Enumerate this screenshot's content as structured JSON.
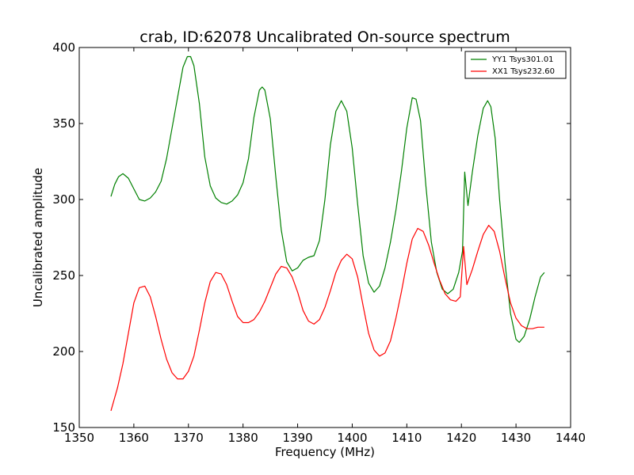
{
  "chart_data": {
    "type": "line",
    "title": "crab, ID:62078 Uncalibrated On-source spectrum",
    "xlabel": "Frequency (MHz)",
    "ylabel": "Uncalibrated amplitude",
    "xlim": [
      1350,
      1440
    ],
    "ylim": [
      150,
      400
    ],
    "xticks": [
      1350,
      1360,
      1370,
      1380,
      1390,
      1400,
      1410,
      1420,
      1430,
      1440
    ],
    "yticks": [
      150,
      200,
      250,
      300,
      350,
      400
    ],
    "grid": false,
    "legend_position": "top-right",
    "series": [
      {
        "name": "YY1 Tsys301.01",
        "color": "#008000",
        "points": [
          [
            1355.8,
            302
          ],
          [
            1356.5,
            310
          ],
          [
            1357.2,
            315
          ],
          [
            1358.0,
            317
          ],
          [
            1359.0,
            314
          ],
          [
            1360.0,
            307
          ],
          [
            1361.0,
            300
          ],
          [
            1362.0,
            299
          ],
          [
            1363.0,
            301
          ],
          [
            1364.0,
            305
          ],
          [
            1365.0,
            312
          ],
          [
            1366.0,
            327
          ],
          [
            1367.0,
            347
          ],
          [
            1368.0,
            367
          ],
          [
            1369.0,
            387
          ],
          [
            1369.8,
            394
          ],
          [
            1370.4,
            394
          ],
          [
            1371.0,
            388
          ],
          [
            1372.0,
            363
          ],
          [
            1373.0,
            328
          ],
          [
            1374.0,
            309
          ],
          [
            1375.0,
            301
          ],
          [
            1376.0,
            298
          ],
          [
            1377.0,
            297
          ],
          [
            1378.0,
            299
          ],
          [
            1379.0,
            303
          ],
          [
            1380.0,
            311
          ],
          [
            1381.0,
            327
          ],
          [
            1382.0,
            354
          ],
          [
            1383.0,
            372
          ],
          [
            1383.5,
            374
          ],
          [
            1384.0,
            372
          ],
          [
            1385.0,
            353
          ],
          [
            1386.0,
            315
          ],
          [
            1387.0,
            280
          ],
          [
            1388.0,
            259
          ],
          [
            1389.0,
            253
          ],
          [
            1390.0,
            255
          ],
          [
            1391.0,
            260
          ],
          [
            1392.0,
            262
          ],
          [
            1393.0,
            263
          ],
          [
            1394.0,
            273
          ],
          [
            1395.0,
            300
          ],
          [
            1396.0,
            336
          ],
          [
            1397.0,
            358
          ],
          [
            1398.0,
            365
          ],
          [
            1399.0,
            358
          ],
          [
            1400.0,
            334
          ],
          [
            1401.0,
            297
          ],
          [
            1402.0,
            263
          ],
          [
            1403.0,
            245
          ],
          [
            1404.0,
            239
          ],
          [
            1405.0,
            243
          ],
          [
            1406.0,
            255
          ],
          [
            1407.0,
            272
          ],
          [
            1408.0,
            293
          ],
          [
            1409.0,
            318
          ],
          [
            1410.0,
            347
          ],
          [
            1411.0,
            367
          ],
          [
            1411.7,
            366
          ],
          [
            1412.5,
            352
          ],
          [
            1413.5,
            309
          ],
          [
            1414.5,
            272
          ],
          [
            1415.5,
            252
          ],
          [
            1416.5,
            241
          ],
          [
            1417.5,
            238
          ],
          [
            1418.5,
            241
          ],
          [
            1419.5,
            252
          ],
          [
            1420.2,
            266
          ],
          [
            1420.6,
            318
          ],
          [
            1421.2,
            296
          ],
          [
            1422.0,
            318
          ],
          [
            1423.0,
            342
          ],
          [
            1424.0,
            360
          ],
          [
            1424.8,
            365
          ],
          [
            1425.4,
            361
          ],
          [
            1426.2,
            340
          ],
          [
            1427.0,
            300
          ],
          [
            1428.0,
            258
          ],
          [
            1429.0,
            225
          ],
          [
            1430.0,
            208
          ],
          [
            1430.6,
            206
          ],
          [
            1431.5,
            210
          ],
          [
            1432.5,
            221
          ],
          [
            1433.5,
            236
          ],
          [
            1434.5,
            249
          ],
          [
            1435.2,
            252
          ]
        ]
      },
      {
        "name": "XX1 Tsys232.60",
        "color": "#ff0000",
        "points": [
          [
            1355.8,
            161
          ],
          [
            1357.0,
            176
          ],
          [
            1358.0,
            192
          ],
          [
            1359.0,
            212
          ],
          [
            1360.0,
            232
          ],
          [
            1361.0,
            242
          ],
          [
            1362.0,
            243
          ],
          [
            1363.0,
            236
          ],
          [
            1364.0,
            223
          ],
          [
            1365.0,
            208
          ],
          [
            1366.0,
            195
          ],
          [
            1367.0,
            186
          ],
          [
            1368.0,
            182
          ],
          [
            1369.0,
            182
          ],
          [
            1370.0,
            187
          ],
          [
            1371.0,
            197
          ],
          [
            1372.0,
            214
          ],
          [
            1373.0,
            232
          ],
          [
            1374.0,
            246
          ],
          [
            1375.0,
            252
          ],
          [
            1376.0,
            251
          ],
          [
            1377.0,
            244
          ],
          [
            1378.0,
            233
          ],
          [
            1379.0,
            223
          ],
          [
            1380.0,
            219
          ],
          [
            1381.0,
            219
          ],
          [
            1382.0,
            221
          ],
          [
            1383.0,
            226
          ],
          [
            1384.0,
            233
          ],
          [
            1385.0,
            242
          ],
          [
            1386.0,
            251
          ],
          [
            1387.0,
            256
          ],
          [
            1388.0,
            255
          ],
          [
            1389.0,
            249
          ],
          [
            1390.0,
            239
          ],
          [
            1391.0,
            227
          ],
          [
            1392.0,
            220
          ],
          [
            1393.0,
            218
          ],
          [
            1394.0,
            221
          ],
          [
            1395.0,
            229
          ],
          [
            1396.0,
            240
          ],
          [
            1397.0,
            252
          ],
          [
            1398.0,
            260
          ],
          [
            1399.0,
            264
          ],
          [
            1400.0,
            261
          ],
          [
            1401.0,
            249
          ],
          [
            1402.0,
            230
          ],
          [
            1403.0,
            212
          ],
          [
            1404.0,
            201
          ],
          [
            1405.0,
            197
          ],
          [
            1406.0,
            199
          ],
          [
            1407.0,
            207
          ],
          [
            1408.0,
            222
          ],
          [
            1409.0,
            239
          ],
          [
            1410.0,
            258
          ],
          [
            1411.0,
            274
          ],
          [
            1412.0,
            281
          ],
          [
            1413.0,
            279
          ],
          [
            1414.0,
            270
          ],
          [
            1415.0,
            258
          ],
          [
            1416.0,
            247
          ],
          [
            1417.0,
            238
          ],
          [
            1418.0,
            234
          ],
          [
            1419.0,
            233
          ],
          [
            1419.8,
            236
          ],
          [
            1420.4,
            269
          ],
          [
            1421.0,
            244
          ],
          [
            1422.0,
            254
          ],
          [
            1423.0,
            266
          ],
          [
            1424.0,
            277
          ],
          [
            1425.0,
            283
          ],
          [
            1426.0,
            279
          ],
          [
            1427.0,
            266
          ],
          [
            1428.0,
            248
          ],
          [
            1429.0,
            232
          ],
          [
            1430.0,
            222
          ],
          [
            1431.0,
            217
          ],
          [
            1432.0,
            215
          ],
          [
            1433.0,
            215
          ],
          [
            1434.0,
            216
          ],
          [
            1435.2,
            216
          ]
        ]
      }
    ]
  }
}
